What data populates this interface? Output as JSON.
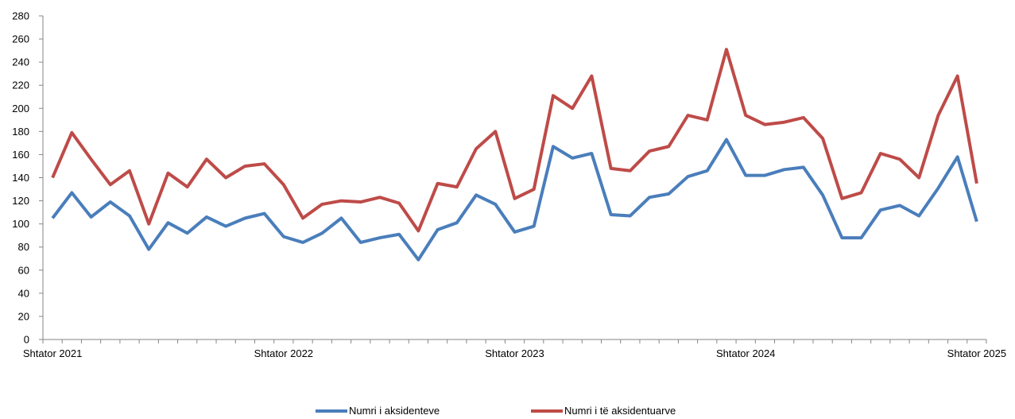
{
  "chart_data": {
    "type": "line",
    "ylim": [
      0,
      280
    ],
    "yticks": [
      0,
      20,
      40,
      60,
      80,
      100,
      120,
      140,
      160,
      180,
      200,
      220,
      240,
      260,
      280
    ],
    "x_labels": [
      {
        "index": 0,
        "label": "Shtator 2021"
      },
      {
        "index": 12,
        "label": "Shtator 2022"
      },
      {
        "index": 24,
        "label": "Shtator 2023"
      },
      {
        "index": 36,
        "label": "Shtator 2024"
      },
      {
        "index": 48,
        "label": "Shtator 2025"
      }
    ],
    "n_points": 49,
    "grid": false,
    "legend_position": "bottom",
    "series": [
      {
        "name": "Numri i aksidenteve",
        "color": "#4a7ebb",
        "values": [
          105,
          127,
          106,
          119,
          107,
          78,
          101,
          92,
          106,
          98,
          105,
          109,
          89,
          84,
          92,
          105,
          84,
          88,
          91,
          69,
          95,
          101,
          125,
          117,
          93,
          98,
          167,
          157,
          161,
          108,
          107,
          123,
          126,
          141,
          146,
          173,
          142,
          142,
          147,
          149,
          125,
          88,
          88,
          112,
          116,
          107,
          131,
          158,
          102
        ]
      },
      {
        "name": "Numri i të aksidentuarve",
        "color": "#be4b48",
        "values": [
          140,
          179,
          156,
          134,
          146,
          100,
          144,
          132,
          156,
          140,
          150,
          152,
          134,
          105,
          117,
          120,
          119,
          123,
          118,
          94,
          135,
          132,
          165,
          180,
          122,
          130,
          211,
          200,
          228,
          148,
          146,
          163,
          167,
          194,
          190,
          251,
          194,
          186,
          188,
          192,
          174,
          122,
          127,
          161,
          156,
          140,
          194,
          228,
          135
        ]
      }
    ]
  }
}
